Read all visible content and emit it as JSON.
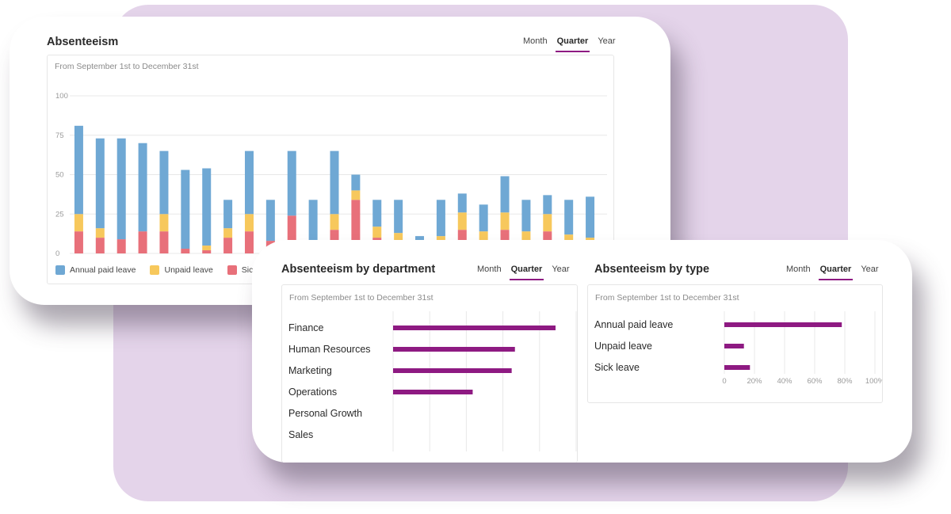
{
  "colors": {
    "annual": "#6fa8d4",
    "unpaid": "#f7c85c",
    "sick": "#e8707a",
    "accent": "#8e1a82",
    "grid": "#e8e8e8"
  },
  "absenteeism": {
    "title": "Absenteeism",
    "tabs": [
      "Month",
      "Quarter",
      "Year"
    ],
    "active_tab": "Quarter",
    "subtitle": "From September 1st to December 31st",
    "legend": [
      "Annual paid leave",
      "Unpaid leave",
      "Sick leave"
    ]
  },
  "by_department": {
    "title": "Absenteeism by department",
    "tabs": [
      "Month",
      "Quarter",
      "Year"
    ],
    "active_tab": "Quarter",
    "subtitle": "From September 1st to December 31st"
  },
  "by_type": {
    "title": "Absenteeism by type",
    "tabs": [
      "Month",
      "Quarter",
      "Year"
    ],
    "active_tab": "Quarter",
    "subtitle": "From September 1st to December 31st"
  },
  "chart_data": [
    {
      "type": "bar",
      "stacked": true,
      "ylim": [
        0,
        100
      ],
      "yticks": [
        0,
        25,
        50,
        75,
        100
      ],
      "grid": true,
      "legend_position": "bottom-left",
      "series": [
        {
          "name": "Sick leave",
          "values": [
            14,
            10,
            9,
            14,
            14,
            3,
            2,
            10,
            14,
            8,
            24,
            2,
            15,
            34,
            10,
            7,
            2,
            5,
            15,
            8,
            15,
            8,
            14,
            7,
            4
          ]
        },
        {
          "name": "Unpaid leave",
          "values": [
            11,
            6,
            0,
            0,
            11,
            0,
            3,
            6,
            11,
            0,
            0,
            1,
            10,
            6,
            7,
            6,
            2,
            6,
            11,
            6,
            11,
            6,
            11,
            5,
            6
          ]
        },
        {
          "name": "Annual paid leave",
          "values": [
            56,
            57,
            64,
            56,
            40,
            50,
            49,
            18,
            40,
            26,
            41,
            31,
            40,
            10,
            17,
            21,
            7,
            23,
            12,
            17,
            23,
            20,
            12,
            22,
            26
          ]
        }
      ]
    },
    {
      "type": "bar",
      "orientation": "horizontal",
      "categories": [
        "Finance",
        "Human Resources",
        "Marketing",
        "Operations",
        "Personal Growth",
        "Sales"
      ],
      "values": [
        100,
        75,
        73,
        49,
        0,
        0
      ],
      "xlim": [
        0,
        100
      ]
    },
    {
      "type": "bar",
      "orientation": "horizontal",
      "categories": [
        "Annual paid leave",
        "Unpaid leave",
        "Sick leave"
      ],
      "values": [
        78,
        13,
        17
      ],
      "xlim": [
        0,
        100
      ],
      "xticks": [
        "0",
        "20%",
        "40%",
        "60%",
        "80%",
        "100%"
      ]
    }
  ]
}
